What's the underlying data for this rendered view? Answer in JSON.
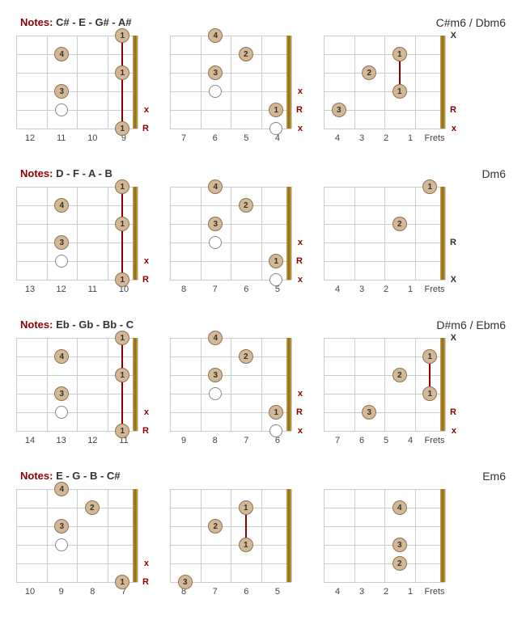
{
  "colors": {
    "dark_red": "#8b0000",
    "dot_fill": "#d4b896",
    "dot_border": "#8b7355",
    "grid_line": "#cccccc",
    "text": "#333333",
    "nut_gradient": [
      "#c9a34e",
      "#8b6914",
      "#c9a34e"
    ]
  },
  "layout": {
    "fretboard_width": 150,
    "fretboard_height": 115,
    "num_frets": 4,
    "num_strings": 6,
    "dot_size": 18,
    "font_size_label": 13,
    "font_size_chord": 14,
    "font_size_fret": 11
  },
  "rows": [
    {
      "notes_prefix": "Notes:",
      "notes": "C# - E - G# - A#",
      "chord": "C#m6 / Dbm6",
      "diagrams": [
        {
          "frets": [
            "12",
            "11",
            "10",
            "9"
          ],
          "show_frets_label": false,
          "dots": [
            {
              "fret": 3,
              "string": 0,
              "finger": "1"
            },
            {
              "fret": 1,
              "string": 1,
              "finger": "4"
            },
            {
              "fret": 3,
              "string": 2,
              "finger": "1"
            },
            {
              "fret": 1,
              "string": 3,
              "finger": "3"
            },
            {
              "fret": 3,
              "string": 5,
              "finger": "1"
            }
          ],
          "open": [
            {
              "fret": 1,
              "string": 4
            }
          ],
          "barres": [
            {
              "fret": 3,
              "from_string": 0,
              "to_string": 5
            }
          ],
          "markers": [
            {
              "string": 4,
              "label": "x"
            },
            {
              "string": 5,
              "label": "R"
            }
          ],
          "x_right": []
        },
        {
          "frets": [
            "7",
            "6",
            "5",
            "4"
          ],
          "show_frets_label": false,
          "dots": [
            {
              "fret": 1,
              "string": 0,
              "finger": "4"
            },
            {
              "fret": 2,
              "string": 1,
              "finger": "2"
            },
            {
              "fret": 1,
              "string": 2,
              "finger": "3"
            },
            {
              "fret": 3,
              "string": 4,
              "finger": "1"
            }
          ],
          "open": [
            {
              "fret": 1,
              "string": 3
            },
            {
              "fret": 3,
              "string": 5
            }
          ],
          "barres": [],
          "markers": [
            {
              "string": 3,
              "label": "x"
            },
            {
              "string": 4,
              "label": "R"
            },
            {
              "string": 5,
              "label": "x"
            }
          ],
          "x_right": []
        },
        {
          "frets": [
            "4",
            "3",
            "2",
            "1",
            "Frets"
          ],
          "show_frets_label": true,
          "dots": [
            {
              "fret": 2,
              "string": 1,
              "finger": "1"
            },
            {
              "fret": 1,
              "string": 2,
              "finger": "2"
            },
            {
              "fret": 2,
              "string": 3,
              "finger": "1"
            },
            {
              "fret": 0,
              "string": 4,
              "finger": "3"
            }
          ],
          "open": [],
          "barres": [
            {
              "fret": 2,
              "from_string": 1,
              "to_string": 3
            }
          ],
          "markers": [
            {
              "string": 4,
              "label": "R"
            },
            {
              "string": 5,
              "label": "x"
            }
          ],
          "x_right": [
            {
              "string": 0,
              "label": "X"
            }
          ]
        }
      ]
    },
    {
      "notes_prefix": "Notes:",
      "notes": "D - F - A - B",
      "chord": "Dm6",
      "diagrams": [
        {
          "frets": [
            "13",
            "12",
            "11",
            "10"
          ],
          "show_frets_label": false,
          "dots": [
            {
              "fret": 3,
              "string": 0,
              "finger": "1"
            },
            {
              "fret": 1,
              "string": 1,
              "finger": "4"
            },
            {
              "fret": 3,
              "string": 2,
              "finger": "1"
            },
            {
              "fret": 1,
              "string": 3,
              "finger": "3"
            },
            {
              "fret": 3,
              "string": 5,
              "finger": "1"
            }
          ],
          "open": [
            {
              "fret": 1,
              "string": 4
            }
          ],
          "barres": [
            {
              "fret": 3,
              "from_string": 0,
              "to_string": 5
            }
          ],
          "markers": [
            {
              "string": 4,
              "label": "x"
            },
            {
              "string": 5,
              "label": "R"
            }
          ],
          "x_right": []
        },
        {
          "frets": [
            "8",
            "7",
            "6",
            "5"
          ],
          "show_frets_label": false,
          "dots": [
            {
              "fret": 1,
              "string": 0,
              "finger": "4"
            },
            {
              "fret": 2,
              "string": 1,
              "finger": "2"
            },
            {
              "fret": 1,
              "string": 2,
              "finger": "3"
            },
            {
              "fret": 3,
              "string": 4,
              "finger": "1"
            }
          ],
          "open": [
            {
              "fret": 1,
              "string": 3
            },
            {
              "fret": 3,
              "string": 5
            }
          ],
          "barres": [],
          "markers": [
            {
              "string": 3,
              "label": "x"
            },
            {
              "string": 4,
              "label": "R"
            },
            {
              "string": 5,
              "label": "x"
            }
          ],
          "x_right": []
        },
        {
          "frets": [
            "4",
            "3",
            "2",
            "1",
            "Frets"
          ],
          "show_frets_label": true,
          "dots": [
            {
              "fret": 3,
              "string": 0,
              "finger": "1"
            },
            {
              "fret": 2,
              "string": 2,
              "finger": "2"
            }
          ],
          "open": [],
          "barres": [],
          "markers": [],
          "x_right": [
            {
              "string": 0,
              "label": ""
            },
            {
              "string": 1,
              "label": ""
            },
            {
              "string": 3,
              "label": "R"
            },
            {
              "string": 4,
              "label": ""
            },
            {
              "string": 5,
              "label": "X"
            }
          ]
        }
      ]
    },
    {
      "notes_prefix": "Notes:",
      "notes": "Eb - Gb - Bb - C",
      "chord": "D#m6 / Ebm6",
      "diagrams": [
        {
          "frets": [
            "14",
            "13",
            "12",
            "11"
          ],
          "show_frets_label": false,
          "dots": [
            {
              "fret": 3,
              "string": 0,
              "finger": "1"
            },
            {
              "fret": 1,
              "string": 1,
              "finger": "4"
            },
            {
              "fret": 3,
              "string": 2,
              "finger": "1"
            },
            {
              "fret": 1,
              "string": 3,
              "finger": "3"
            },
            {
              "fret": 3,
              "string": 5,
              "finger": "1"
            }
          ],
          "open": [
            {
              "fret": 1,
              "string": 4
            }
          ],
          "barres": [
            {
              "fret": 3,
              "from_string": 0,
              "to_string": 5
            }
          ],
          "markers": [
            {
              "string": 4,
              "label": "x"
            },
            {
              "string": 5,
              "label": "R"
            }
          ],
          "x_right": []
        },
        {
          "frets": [
            "9",
            "8",
            "7",
            "6"
          ],
          "show_frets_label": false,
          "dots": [
            {
              "fret": 1,
              "string": 0,
              "finger": "4"
            },
            {
              "fret": 2,
              "string": 1,
              "finger": "2"
            },
            {
              "fret": 1,
              "string": 2,
              "finger": "3"
            },
            {
              "fret": 3,
              "string": 4,
              "finger": "1"
            }
          ],
          "open": [
            {
              "fret": 1,
              "string": 3
            },
            {
              "fret": 3,
              "string": 5
            }
          ],
          "barres": [],
          "markers": [
            {
              "string": 3,
              "label": "x"
            },
            {
              "string": 4,
              "label": "R"
            },
            {
              "string": 5,
              "label": "x"
            }
          ],
          "x_right": []
        },
        {
          "frets": [
            "7",
            "6",
            "5",
            "4",
            "Frets"
          ],
          "show_frets_label": true,
          "dots": [
            {
              "fret": 3,
              "string": 1,
              "finger": "1"
            },
            {
              "fret": 2,
              "string": 2,
              "finger": "2"
            },
            {
              "fret": 3,
              "string": 3,
              "finger": "1"
            },
            {
              "fret": 1,
              "string": 4,
              "finger": "3"
            }
          ],
          "open": [],
          "barres": [
            {
              "fret": 3,
              "from_string": 1,
              "to_string": 3
            }
          ],
          "markers": [
            {
              "string": 4,
              "label": "R"
            },
            {
              "string": 5,
              "label": "x"
            }
          ],
          "x_right": [
            {
              "string": 0,
              "label": "X"
            }
          ]
        }
      ]
    },
    {
      "notes_prefix": "Notes:",
      "notes": "E - G - B - C#",
      "chord": "Em6",
      "diagrams": [
        {
          "frets": [
            "10",
            "9",
            "8",
            "7"
          ],
          "show_frets_label": false,
          "dots": [
            {
              "fret": 1,
              "string": 0,
              "finger": "4"
            },
            {
              "fret": 2,
              "string": 1,
              "finger": "2"
            },
            {
              "fret": 1,
              "string": 2,
              "finger": "3"
            },
            {
              "fret": 3,
              "string": 5,
              "finger": "1"
            }
          ],
          "open": [
            {
              "fret": 1,
              "string": 3
            }
          ],
          "barres": [],
          "markers": [
            {
              "string": 4,
              "label": "x"
            },
            {
              "string": 5,
              "label": "R"
            }
          ],
          "x_right": []
        },
        {
          "frets": [
            "8",
            "7",
            "6",
            "5"
          ],
          "show_frets_label": false,
          "dots": [
            {
              "fret": 2,
              "string": 1,
              "finger": "1"
            },
            {
              "fret": 1,
              "string": 2,
              "finger": "2"
            },
            {
              "fret": 2,
              "string": 3,
              "finger": "1"
            },
            {
              "fret": 0,
              "string": 5,
              "finger": "3"
            }
          ],
          "open": [],
          "barres": [
            {
              "fret": 2,
              "from_string": 1,
              "to_string": 3
            }
          ],
          "markers": [],
          "x_right": []
        },
        {
          "frets": [
            "4",
            "3",
            "2",
            "1",
            "Frets"
          ],
          "show_frets_label": true,
          "dots": [
            {
              "fret": 2,
              "string": 1,
              "finger": "4"
            },
            {
              "fret": 2,
              "string": 3,
              "finger": "3"
            },
            {
              "fret": 2,
              "string": 4,
              "finger": "2"
            }
          ],
          "open": [],
          "barres": [],
          "markers": [],
          "x_right": [
            {
              "string": 0,
              "label": ""
            },
            {
              "string": 2,
              "label": ""
            },
            {
              "string": 5,
              "label": ""
            }
          ]
        }
      ]
    }
  ]
}
